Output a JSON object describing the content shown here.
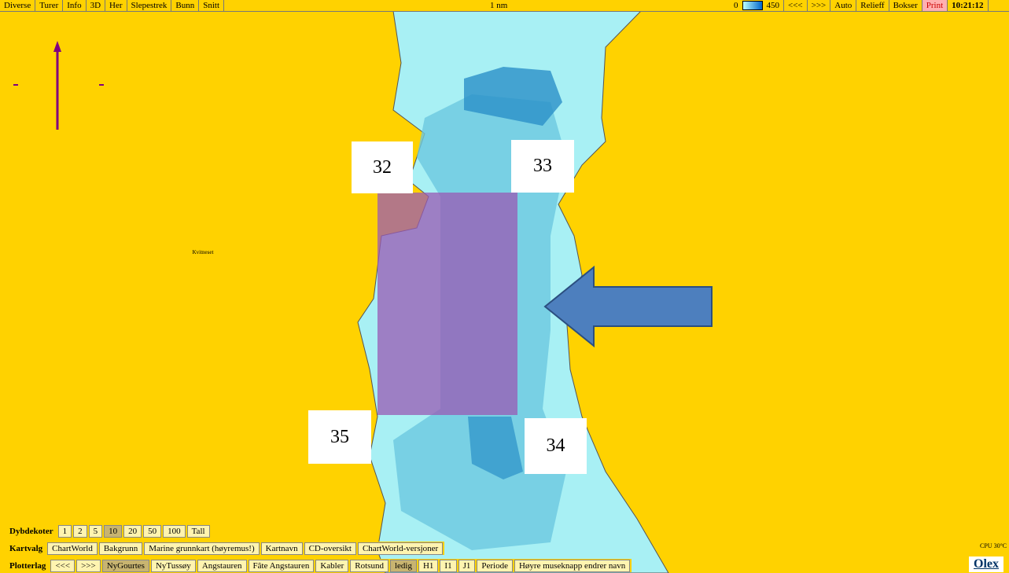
{
  "top_bar": {
    "buttons": [
      "Diverse",
      "Turer",
      "Info",
      "3D",
      "Her",
      "Slepestrek",
      "Bunn",
      "Snitt"
    ],
    "scale": "1 nm",
    "depth_min": "0",
    "depth_max": "450",
    "right_buttons": [
      "<<<",
      ">>>",
      "Auto",
      "Relieff",
      "Bokser",
      "Print"
    ],
    "time": "10:21:12"
  },
  "map": {
    "place": "Kvitneset",
    "labels": [
      "32",
      "33",
      "34",
      "35"
    ]
  },
  "dybdekoter": {
    "label": "Dybdekoter",
    "options": [
      "1",
      "2",
      "5",
      "10",
      "20",
      "50",
      "100",
      "Tall"
    ]
  },
  "kartvalg": {
    "label": "Kartvalg",
    "options": [
      "ChartWorld",
      "Bakgrunn",
      "Marine grunnkart (høyremus!)",
      "Kartnavn",
      "CD-oversikt",
      "ChartWorld-versjoner"
    ]
  },
  "plotterlag": {
    "label": "Plotterlag",
    "options": [
      "<<<",
      ">>>",
      "NyGourtes",
      "NyTussøy",
      "Angstauren",
      "Fâte Angstauren",
      "Kabler",
      "Rotsund",
      "ledig",
      "H1",
      "I1",
      "J1",
      "Periode",
      "Høyre museknapp endrer navn"
    ]
  },
  "status": {
    "cpu": "CPU 30°C",
    "logo": "Olex"
  }
}
